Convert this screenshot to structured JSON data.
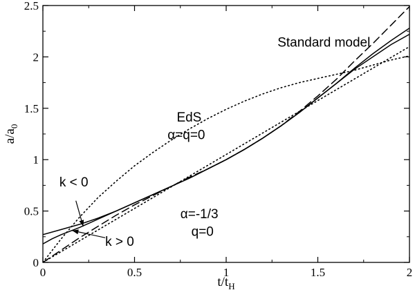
{
  "chart_data": {
    "type": "line",
    "xlabel": "t/t",
    "xlabel_sub": "H",
    "ylabel": "a/a",
    "ylabel_sub": "0",
    "xlim": [
      0,
      2
    ],
    "ylim": [
      0,
      2.5
    ],
    "xticks": [
      0,
      0.5,
      1,
      1.5,
      2
    ],
    "xtick_labels": [
      "0",
      "0.5",
      "1",
      "1.5",
      "2"
    ],
    "yticks": [
      0,
      0.5,
      1,
      1.5,
      2,
      2.5
    ],
    "ytick_labels": [
      "0",
      "0.5",
      "1",
      "1.5",
      "2",
      "2.5"
    ],
    "grid": false,
    "series": [
      {
        "style": "solid",
        "points": [
          [
            0,
            0.27
          ],
          [
            0.1,
            0.32
          ],
          [
            0.2,
            0.37
          ],
          [
            0.3,
            0.43
          ],
          [
            0.4,
            0.5
          ],
          [
            0.5,
            0.58
          ],
          [
            0.6,
            0.66
          ],
          [
            0.7,
            0.74
          ],
          [
            0.8,
            0.82
          ],
          [
            0.9,
            0.91
          ],
          [
            1.0,
            1.0
          ],
          [
            1.1,
            1.1
          ],
          [
            1.2,
            1.21
          ],
          [
            1.3,
            1.33
          ],
          [
            1.4,
            1.46
          ],
          [
            1.5,
            1.6
          ],
          [
            1.6,
            1.74
          ],
          [
            1.7,
            1.88
          ],
          [
            1.8,
            2.0
          ],
          [
            1.9,
            2.12
          ],
          [
            2.0,
            2.22
          ]
        ]
      },
      {
        "style": "solid",
        "points": [
          [
            0,
            0.18
          ],
          [
            0.05,
            0.23
          ],
          [
            0.1,
            0.27
          ],
          [
            0.2,
            0.34
          ],
          [
            0.3,
            0.42
          ],
          [
            0.4,
            0.5
          ],
          [
            0.5,
            0.58
          ],
          [
            0.6,
            0.66
          ],
          [
            0.7,
            0.74
          ],
          [
            0.8,
            0.82
          ],
          [
            0.9,
            0.91
          ],
          [
            1.0,
            1.0
          ],
          [
            1.1,
            1.1
          ],
          [
            1.2,
            1.21
          ],
          [
            1.3,
            1.33
          ],
          [
            1.4,
            1.46
          ],
          [
            1.5,
            1.6
          ],
          [
            1.6,
            1.74
          ],
          [
            1.7,
            1.89
          ],
          [
            1.8,
            2.03
          ],
          [
            1.9,
            2.16
          ],
          [
            2.0,
            2.28
          ]
        ]
      },
      {
        "style": "dashed",
        "points": [
          [
            0,
            0.0
          ],
          [
            0.1,
            0.12
          ],
          [
            0.2,
            0.24
          ],
          [
            0.3,
            0.35
          ],
          [
            0.4,
            0.46
          ],
          [
            0.5,
            0.56
          ],
          [
            0.6,
            0.65
          ],
          [
            0.7,
            0.74
          ],
          [
            0.8,
            0.83
          ],
          [
            0.9,
            0.91
          ],
          [
            1.0,
            1.0
          ],
          [
            1.1,
            1.1
          ],
          [
            1.2,
            1.21
          ],
          [
            1.3,
            1.33
          ],
          [
            1.4,
            1.47
          ],
          [
            1.5,
            1.62
          ],
          [
            1.6,
            1.78
          ],
          [
            1.7,
            1.96
          ],
          [
            1.8,
            2.13
          ],
          [
            1.9,
            2.31
          ],
          [
            2.0,
            2.49
          ]
        ]
      },
      {
        "style": "dotted",
        "points": [
          [
            0,
            0.0
          ],
          [
            0.1,
            0.23
          ],
          [
            0.2,
            0.44
          ],
          [
            0.3,
            0.63
          ],
          [
            0.4,
            0.79
          ],
          [
            0.5,
            0.94
          ],
          [
            0.6,
            1.07
          ],
          [
            0.7,
            1.19
          ],
          [
            0.8,
            1.3
          ],
          [
            0.9,
            1.4
          ],
          [
            1.0,
            1.49
          ],
          [
            1.1,
            1.57
          ],
          [
            1.2,
            1.64
          ],
          [
            1.3,
            1.7
          ],
          [
            1.4,
            1.75
          ],
          [
            1.5,
            1.79
          ],
          [
            1.6,
            1.83
          ],
          [
            1.7,
            1.87
          ],
          [
            1.8,
            1.92
          ],
          [
            1.9,
            1.97
          ],
          [
            2.0,
            2.01
          ]
        ]
      },
      {
        "style": "dotted",
        "points": [
          [
            0,
            0.0
          ],
          [
            2.0,
            2.1
          ]
        ]
      }
    ],
    "annotations": [
      {
        "text": "Standard model",
        "x": 1.28,
        "y": 2.1
      },
      {
        "text": "EdS",
        "x": 0.73,
        "y": 1.37
      },
      {
        "text": "α=q=0",
        "x": 0.68,
        "y": 1.2
      },
      {
        "text": "k < 0",
        "x": 0.09,
        "y": 0.74
      },
      {
        "text": "k > 0",
        "x": 0.34,
        "y": 0.16
      },
      {
        "text": "α=-1/3",
        "x": 0.75,
        "y": 0.43
      },
      {
        "text": "q=0",
        "x": 0.81,
        "y": 0.26
      }
    ],
    "arrows": [
      {
        "from": [
          0.18,
          0.6
        ],
        "to": [
          0.22,
          0.35
        ]
      },
      {
        "from": [
          0.34,
          0.24
        ],
        "to": [
          0.16,
          0.31
        ]
      }
    ]
  }
}
